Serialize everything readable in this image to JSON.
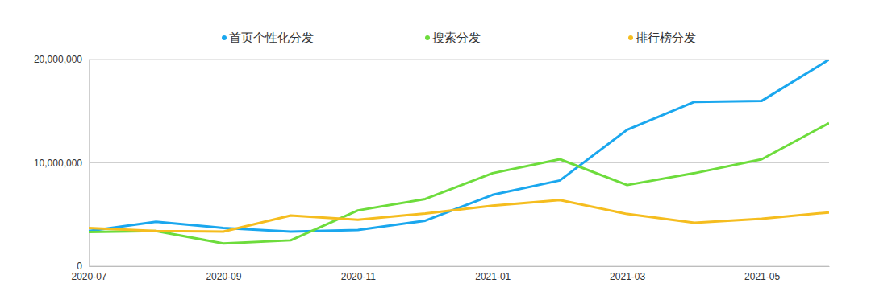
{
  "chart_data": {
    "type": "line",
    "categories": [
      "2020-07",
      null,
      "2020-09",
      null,
      "2020-11",
      null,
      "2021-01",
      null,
      "2021-03",
      null,
      "2021-05",
      null
    ],
    "series": [
      {
        "name": "首页个性化分发",
        "color": "#1aa7ee",
        "values": [
          3400000,
          4300000,
          3700000,
          3350000,
          3500000,
          4400000,
          6900000,
          8300000,
          13200000,
          15900000,
          16000000,
          20000000
        ]
      },
      {
        "name": "搜索分发",
        "color": "#6ddc3c",
        "values": [
          3300000,
          3400000,
          2200000,
          2500000,
          5400000,
          6500000,
          9000000,
          10350000,
          7850000,
          9000000,
          10350000,
          13850000
        ]
      },
      {
        "name": "排行榜分发",
        "color": "#f5bd1f",
        "values": [
          3700000,
          3400000,
          3350000,
          4900000,
          4500000,
          5100000,
          5850000,
          6400000,
          5050000,
          4200000,
          4600000,
          5200000
        ]
      }
    ],
    "ylim": [
      0,
      20000000
    ],
    "yticks": [
      0,
      {
        "value": 10000000,
        "label": "10,000,000"
      },
      {
        "value": 20000000,
        "label": "20,000,000"
      }
    ],
    "grid": true,
    "legend": "top"
  }
}
